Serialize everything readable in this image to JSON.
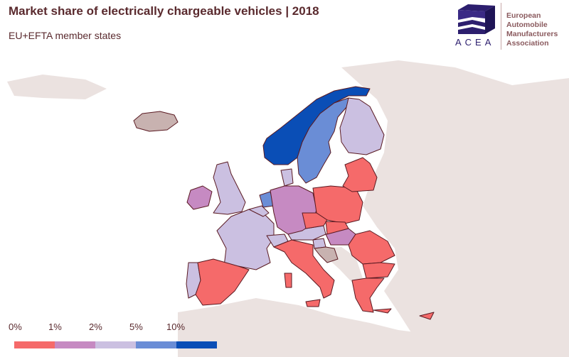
{
  "header": {
    "title": "Market share of electrically chargeable vehicles | 2018",
    "subtitle": "EU+EFTA member states"
  },
  "logo": {
    "acronym": "ACEA",
    "lines": [
      "European",
      "Automobile",
      "Manufacturers",
      "Association"
    ]
  },
  "legend": {
    "labels": [
      "0%",
      "1%",
      "2%",
      "5%",
      "10%"
    ],
    "colors": [
      "#f56a6a",
      "#c68ac2",
      "#cbc0e1",
      "#6a8dd6",
      "#0a4eb6"
    ]
  },
  "colors": {
    "land": "#ebe2e0",
    "no_data": "#c8b2b0",
    "border": "#5a1a22",
    "sea": "#ffffff"
  },
  "country_category": {
    "NO": 4,
    "SE": 3,
    "NL": 3,
    "FI": 2,
    "GB": 2,
    "FR": 2,
    "BE": 2,
    "DK": 2,
    "AT": 2,
    "CH": 2,
    "PT": 2,
    "SI": 2,
    "IE": 1,
    "DE": 1,
    "HU": 1,
    "ES": 0,
    "IT": 0,
    "PL": 0,
    "BALTIC": 0,
    "CZ": 0,
    "SK": 0,
    "RO": 0,
    "BG": 0,
    "GR": 0,
    "CY": 0,
    "SARD": 0,
    "SIC": 0,
    "CRETE": 0,
    "IS": -1,
    "HR": -1
  }
}
